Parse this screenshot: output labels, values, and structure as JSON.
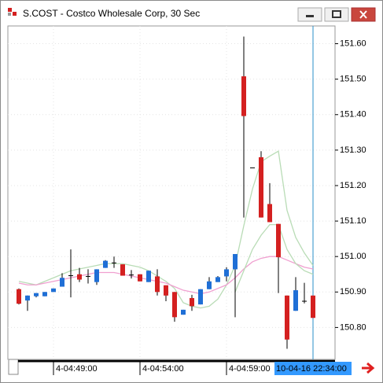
{
  "window": {
    "title": "S.COST - Costco Wholesale Corp, 30 Sec"
  },
  "chart_data": {
    "type": "candlestick",
    "categories": [
      null,
      null,
      null,
      null,
      "4-04:49:00",
      null,
      null,
      null,
      null,
      null,
      null,
      null,
      null,
      null,
      "4-04:54:00",
      null,
      null,
      null,
      null,
      null,
      null,
      null,
      null,
      null,
      "4-04:59:00",
      null,
      null,
      null,
      null,
      null,
      null,
      null,
      null,
      null,
      "10-04-16 22:34:00"
    ],
    "open": [
      150.908,
      150.876,
      150.888,
      150.888,
      150.9,
      150.915,
      150.946,
      150.95,
      150.944,
      150.928,
      150.968,
      150.982,
      150.978,
      150.948,
      150.95,
      150.928,
      150.944,
      150.919,
      150.9,
      150.836,
      150.883,
      150.865,
      150.908,
      150.928,
      150.944,
      150.964,
      151.508,
      151.25,
      151.28,
      151.148,
      151.092,
      150.89,
      150.847,
      150.874,
      150.89
    ],
    "high": [
      150.91,
      150.89,
      150.897,
      150.9,
      150.91,
      150.953,
      151.02,
      150.968,
      150.964,
      150.964,
      150.99,
      151.0,
      150.978,
      150.962,
      150.95,
      150.96,
      150.964,
      150.919,
      150.9,
      150.85,
      150.892,
      150.908,
      150.942,
      150.945,
      150.97,
      151.007,
      151.62,
      151.25,
      151.297,
      151.207,
      151.092,
      150.89,
      150.942,
      150.926,
      150.89
    ],
    "low": [
      150.865,
      150.847,
      150.885,
      150.888,
      150.9,
      150.915,
      150.885,
      150.928,
      150.924,
      150.92,
      150.968,
      150.968,
      150.946,
      150.938,
      150.93,
      150.928,
      150.89,
      150.874,
      150.816,
      150.836,
      150.847,
      150.865,
      150.908,
      150.928,
      150.93,
      150.829,
      151.11,
      151.25,
      151.11,
      151.097,
      150.897,
      150.74,
      150.847,
      150.868,
      150.827
    ],
    "close": [
      150.867,
      150.89,
      150.897,
      150.9,
      150.91,
      150.94,
      150.946,
      150.935,
      150.944,
      150.964,
      150.988,
      150.982,
      150.946,
      150.948,
      150.93,
      150.96,
      150.9,
      150.89,
      150.829,
      150.85,
      150.86,
      150.908,
      150.93,
      150.942,
      150.964,
      151.007,
      151.396,
      151.25,
      151.11,
      151.097,
      150.998,
      150.766,
      150.905,
      150.874,
      150.827
    ],
    "up_color": "#1f6fd6",
    "down_color": "#d42020",
    "flat_color": "#000000",
    "overlays": [
      {
        "color": "#b9dcb6",
        "values": [
          150.93,
          150.925,
          150.92,
          150.93,
          150.94,
          150.95,
          150.96,
          150.965,
          150.97,
          150.975,
          150.98,
          150.98,
          150.98,
          150.975,
          150.97,
          150.96,
          150.945,
          150.93,
          150.91,
          150.87,
          150.86,
          150.855,
          150.86,
          150.88,
          150.92,
          150.975,
          151.087,
          151.19,
          151.267,
          151.283,
          151.297,
          151.13,
          151.054,
          151.01,
          150.975
        ]
      },
      {
        "color": "#f0a0d0",
        "values": [
          150.925,
          150.92,
          150.92,
          150.925,
          150.93,
          150.935,
          150.94,
          150.945,
          150.95,
          150.955,
          150.955,
          150.955,
          150.95,
          150.945,
          150.94,
          150.935,
          150.93,
          150.925,
          150.915,
          150.905,
          150.9,
          150.895,
          150.9,
          150.91,
          150.92,
          150.94,
          150.965,
          150.985,
          150.995,
          151.0,
          151.0,
          150.99,
          150.98,
          150.97,
          150.965
        ]
      },
      {
        "color": "#b9dcb6",
        "values": [
          null,
          null,
          null,
          null,
          null,
          null,
          null,
          null,
          null,
          null,
          null,
          null,
          null,
          null,
          null,
          null,
          null,
          null,
          null,
          null,
          null,
          null,
          null,
          null,
          null,
          150.9,
          150.96,
          151.02,
          151.06,
          151.09,
          151.09,
          151.02,
          150.98,
          150.96,
          150.95
        ]
      }
    ],
    "ylim": [
      150.71,
      151.65
    ],
    "yticks": [
      {
        "value": 150.8,
        "label": "150.80"
      },
      {
        "value": 150.9,
        "label": "150.90"
      },
      {
        "value": 151.0,
        "label": "151.00"
      },
      {
        "value": 151.1,
        "label": "151.10"
      },
      {
        "value": 151.2,
        "label": "151.20"
      },
      {
        "value": 151.3,
        "label": "151.30"
      },
      {
        "value": 151.4,
        "label": "151.40"
      },
      {
        "value": 151.5,
        "label": "151.50"
      },
      {
        "value": 151.6,
        "label": "151.60"
      }
    ],
    "grid": true
  }
}
